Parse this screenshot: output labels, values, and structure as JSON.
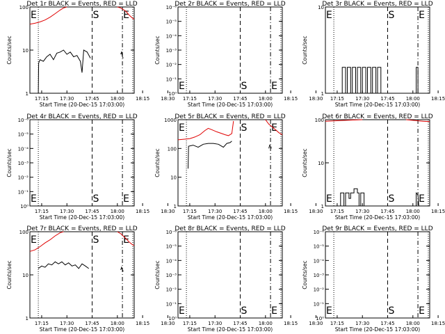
{
  "chart_data": [
    {
      "type": "line",
      "title": "Det 1r BLACK = Events, RED = LLD",
      "xlabel": "Start Time (20-Dec-15 17:03:00)",
      "ylabel": "Counts/sec",
      "scale": "log",
      "y_ticks": [
        "1",
        "10",
        "100"
      ],
      "x_ticks": [
        "17:15",
        "17:30",
        "17:45",
        "18:00",
        "18:15",
        "18:30"
      ],
      "markers": [
        "E",
        "S",
        "E"
      ],
      "series": [
        {
          "color": "#e00000",
          "segments": [
            [
              [
                0,
                40
              ],
              [
                3,
                42
              ],
              [
                6,
                45
              ],
              [
                9,
                50
              ],
              [
                12,
                58
              ],
              [
                15,
                70
              ],
              [
                18,
                85
              ],
              [
                20,
                95
              ],
              [
                22,
                100
              ]
            ],
            [
              [
                52,
                100
              ],
              [
                54,
                95
              ],
              [
                57,
                80
              ],
              [
                59,
                65
              ],
              [
                61,
                55
              ],
              [
                62,
                52
              ]
            ]
          ]
        },
        {
          "color": "#000000",
          "segments": [
            [
              [
                5,
                1
              ],
              [
                5.2,
                5
              ],
              [
                6,
                6
              ],
              [
                8,
                5.5
              ],
              [
                10,
                7
              ],
              [
                12,
                8
              ],
              [
                14,
                6
              ],
              [
                16,
                8.5
              ],
              [
                18,
                9
              ],
              [
                20,
                10
              ],
              [
                22,
                8
              ],
              [
                24,
                9
              ],
              [
                26,
                7
              ],
              [
                28,
                7.5
              ],
              [
                30,
                5.5
              ],
              [
                31,
                3
              ],
              [
                32,
                10
              ],
              [
                34,
                9
              ],
              [
                36,
                6.5
              ]
            ],
            [
              [
                54,
                8
              ],
              [
                54.5,
                9
              ],
              [
                55,
                7
              ],
              [
                55.5,
                6.5
              ]
            ]
          ]
        }
      ]
    },
    {
      "type": "line",
      "title": "Det 2r BLACK = Events, RED = LLD",
      "xlabel": "Start Time (20-Dec-15 17:03:00)",
      "ylabel": "Counts/sec",
      "scale": "log",
      "y_ticks": [
        "10⁰",
        "10⁻¹",
        "10⁻²",
        "10⁻³",
        "10⁻⁴",
        "10⁻⁵",
        "10⁻⁶"
      ],
      "x_ticks": [
        "17:15",
        "17:30",
        "17:45",
        "18:00",
        "18:15",
        "18:30"
      ],
      "markers": [
        "E",
        "S",
        "E"
      ],
      "series": []
    },
    {
      "type": "line",
      "title": "Det 3r BLACK = Events, RED = LLD",
      "xlabel": "Start Time (20-Dec-15 17:03:00)",
      "ylabel": "Counts/sec",
      "scale": "log",
      "y_ticks": [
        "1",
        "10"
      ],
      "x_ticks": [
        "17:15",
        "17:30",
        "17:45",
        "18:00",
        "18:15",
        "18:30"
      ],
      "markers": [
        "E",
        "S",
        "E"
      ],
      "series": [
        {
          "color": "#000000",
          "segments": [
            [
              [
                10,
                1
              ],
              [
                10,
                2
              ],
              [
                12,
                2
              ],
              [
                12,
                1
              ],
              [
                13,
                1
              ],
              [
                13,
                2
              ],
              [
                15,
                2
              ],
              [
                15,
                1
              ],
              [
                16,
                1
              ],
              [
                16,
                2
              ],
              [
                18,
                2
              ],
              [
                18,
                1
              ],
              [
                19,
                1
              ],
              [
                19,
                2
              ],
              [
                21,
                2
              ],
              [
                21,
                1
              ],
              [
                22,
                1
              ],
              [
                22,
                2
              ],
              [
                24,
                2
              ],
              [
                24,
                1
              ],
              [
                25,
                1
              ],
              [
                25,
                2
              ],
              [
                27,
                2
              ],
              [
                27,
                1
              ],
              [
                28,
                1
              ],
              [
                28,
                2
              ],
              [
                30,
                2
              ],
              [
                30,
                1
              ],
              [
                31,
                1
              ],
              [
                31,
                2
              ],
              [
                33,
                2
              ],
              [
                33,
                1
              ]
            ],
            [
              [
                54,
                1
              ],
              [
                54,
                2
              ],
              [
                55,
                2
              ],
              [
                55,
                1
              ]
            ]
          ]
        }
      ]
    },
    {
      "type": "line",
      "title": "Det 4r BLACK = Events, RED = LLD",
      "xlabel": "Start Time (20-Dec-15 17:03:00)",
      "ylabel": "Counts/sec",
      "scale": "log",
      "y_ticks": [
        "10⁰",
        "10⁻¹",
        "10⁻²",
        "10⁻³",
        "10⁻⁴",
        "10⁻⁵",
        "10⁻⁶"
      ],
      "x_ticks": [
        "17:15",
        "17:30",
        "17:45",
        "18:00",
        "18:15",
        "18:30"
      ],
      "markers": [
        "E",
        "S",
        "E"
      ],
      "series": []
    },
    {
      "type": "line",
      "title": "Det 5r BLACK = Events, RED = LLD",
      "xlabel": "Start Time (20-Dec-15 17:03:00)",
      "ylabel": "Counts/sec",
      "scale": "log",
      "y_ticks": [
        "1",
        "10",
        "100",
        "1000"
      ],
      "x_ticks": [
        "17:15",
        "17:30",
        "17:45",
        "18:00",
        "18:15",
        "18:30"
      ],
      "markers": [
        "E",
        "S",
        "E"
      ],
      "series": [
        {
          "color": "#e00000",
          "segments": [
            [
              [
                0,
                200
              ],
              [
                4,
                210
              ],
              [
                7,
                220
              ],
              [
                10,
                250
              ],
              [
                13,
                300
              ],
              [
                16,
                420
              ],
              [
                18,
                500
              ],
              [
                20,
                450
              ],
              [
                23,
                380
              ],
              [
                26,
                330
              ],
              [
                28,
                300
              ],
              [
                30,
                280
              ],
              [
                32,
                330
              ],
              [
                33,
                900
              ]
            ],
            [
              [
                52,
                1000
              ],
              [
                54,
                700
              ],
              [
                57,
                500
              ],
              [
                60,
                350
              ],
              [
                62,
                300
              ]
            ]
          ]
        },
        {
          "color": "#000000",
          "segments": [
            [
              [
                6,
                20
              ],
              [
                6.3,
                120
              ],
              [
                9,
                130
              ],
              [
                12,
                110
              ],
              [
                15,
                140
              ],
              [
                18,
                150
              ],
              [
                21,
                150
              ],
              [
                24,
                140
              ],
              [
                27,
                110
              ],
              [
                29,
                150
              ],
              [
                31,
                160
              ],
              [
                32,
                180
              ]
            ],
            [
              [
                54,
                100
              ],
              [
                54.5,
                130
              ],
              [
                55,
                120
              ],
              [
                55.5,
                100
              ]
            ]
          ]
        }
      ]
    },
    {
      "type": "line",
      "title": "Det 6r BLACK = Events, RED = LLD",
      "xlabel": "Start Time (20-Dec-15 17:03:00)",
      "ylabel": "Counts/sec",
      "scale": "log",
      "y_ticks": [
        "1",
        "10",
        "100"
      ],
      "x_ticks": [
        "17:15",
        "17:30",
        "17:45",
        "18:00",
        "18:15",
        "18:30"
      ],
      "markers": [
        "E",
        "S",
        "E"
      ],
      "series": [
        {
          "color": "#e00000",
          "segments": [
            [
              [
                0,
                92
              ],
              [
                8,
                95
              ],
              [
                16,
                98
              ],
              [
                22,
                100
              ]
            ],
            [
              [
                48,
                100
              ],
              [
                54,
                95
              ],
              [
                58,
                92
              ],
              [
                62,
                90
              ]
            ]
          ]
        },
        {
          "color": "#000000",
          "segments": [
            [
              [
                9,
                1
              ],
              [
                9,
                2
              ],
              [
                11,
                2
              ],
              [
                11,
                1
              ],
              [
                12,
                1
              ],
              [
                12,
                2
              ],
              [
                14,
                2
              ],
              [
                14,
                1.5
              ],
              [
                15,
                1.5
              ],
              [
                15,
                2
              ],
              [
                17,
                2
              ],
              [
                17,
                2.5
              ],
              [
                19,
                2.5
              ],
              [
                19,
                2
              ],
              [
                20,
                2
              ],
              [
                20,
                1
              ],
              [
                21,
                1
              ],
              [
                21,
                2
              ],
              [
                23,
                2
              ],
              [
                23,
                1
              ]
            ],
            [
              [
                54,
                1
              ],
              [
                54,
                2
              ],
              [
                55,
                1.8
              ],
              [
                55.5,
                1
              ]
            ]
          ]
        }
      ]
    },
    {
      "type": "line",
      "title": "Det 7r BLACK = Events, RED = LLD",
      "xlabel": "Start Time (20-Dec-15 17:03:00)",
      "ylabel": "Counts/sec",
      "scale": "log",
      "y_ticks": [
        "1",
        "10",
        "100"
      ],
      "x_ticks": [
        "17:15",
        "17:30",
        "17:45",
        "18:00",
        "18:15",
        "18:30"
      ],
      "markers": [
        "E",
        "S",
        "E"
      ],
      "series": [
        {
          "color": "#e00000",
          "segments": [
            [
              [
                0,
                35
              ],
              [
                3,
                38
              ],
              [
                6,
                45
              ],
              [
                9,
                55
              ],
              [
                12,
                65
              ],
              [
                15,
                80
              ],
              [
                18,
                95
              ],
              [
                20,
                100
              ]
            ],
            [
              [
                52,
                100
              ],
              [
                54,
                90
              ],
              [
                57,
                70
              ],
              [
                59,
                58
              ],
              [
                61,
                50
              ],
              [
                62,
                48
              ]
            ]
          ]
        },
        {
          "color": "#000000",
          "segments": [
            [
              [
                5,
                14
              ],
              [
                7,
                16
              ],
              [
                9,
                15
              ],
              [
                11,
                18
              ],
              [
                13,
                17
              ],
              [
                15,
                20
              ],
              [
                17,
                18
              ],
              [
                19,
                20
              ],
              [
                21,
                17
              ],
              [
                23,
                19
              ],
              [
                25,
                16
              ],
              [
                27,
                17
              ],
              [
                29,
                14
              ],
              [
                31,
                18
              ],
              [
                33,
                16
              ],
              [
                35,
                14
              ]
            ],
            [
              [
                54,
                13
              ],
              [
                54.5,
                15
              ],
              [
                55,
                13
              ],
              [
                55.5,
                12
              ]
            ]
          ]
        }
      ]
    },
    {
      "type": "line",
      "title": "Det 8r BLACK = Events, RED = LLD",
      "xlabel": "Start Time (20-Dec-15 17:03:00)",
      "ylabel": "Counts/sec",
      "scale": "log",
      "y_ticks": [
        "10⁰",
        "10⁻¹",
        "10⁻²",
        "10⁻³",
        "10⁻⁴",
        "10⁻⁵",
        "10⁻⁶"
      ],
      "x_ticks": [
        "17:15",
        "17:30",
        "17:45",
        "18:00",
        "18:15",
        "18:30"
      ],
      "markers": [
        "E",
        "S",
        "E"
      ],
      "series": []
    },
    {
      "type": "line",
      "title": "Det 9r BLACK = Events, RED = LLD",
      "xlabel": "Start Time (20-Dec-15 17:03:00)",
      "ylabel": "Counts/sec",
      "scale": "log",
      "y_ticks": [
        "10⁰",
        "10⁻¹",
        "10⁻²",
        "10⁻³",
        "10⁻⁴",
        "10⁻⁵",
        "10⁻⁶"
      ],
      "x_ticks": [
        "17:15",
        "17:30",
        "17:45",
        "18:00",
        "18:15",
        "18:30"
      ],
      "markers": [
        "E",
        "S",
        "E"
      ],
      "series": []
    }
  ]
}
